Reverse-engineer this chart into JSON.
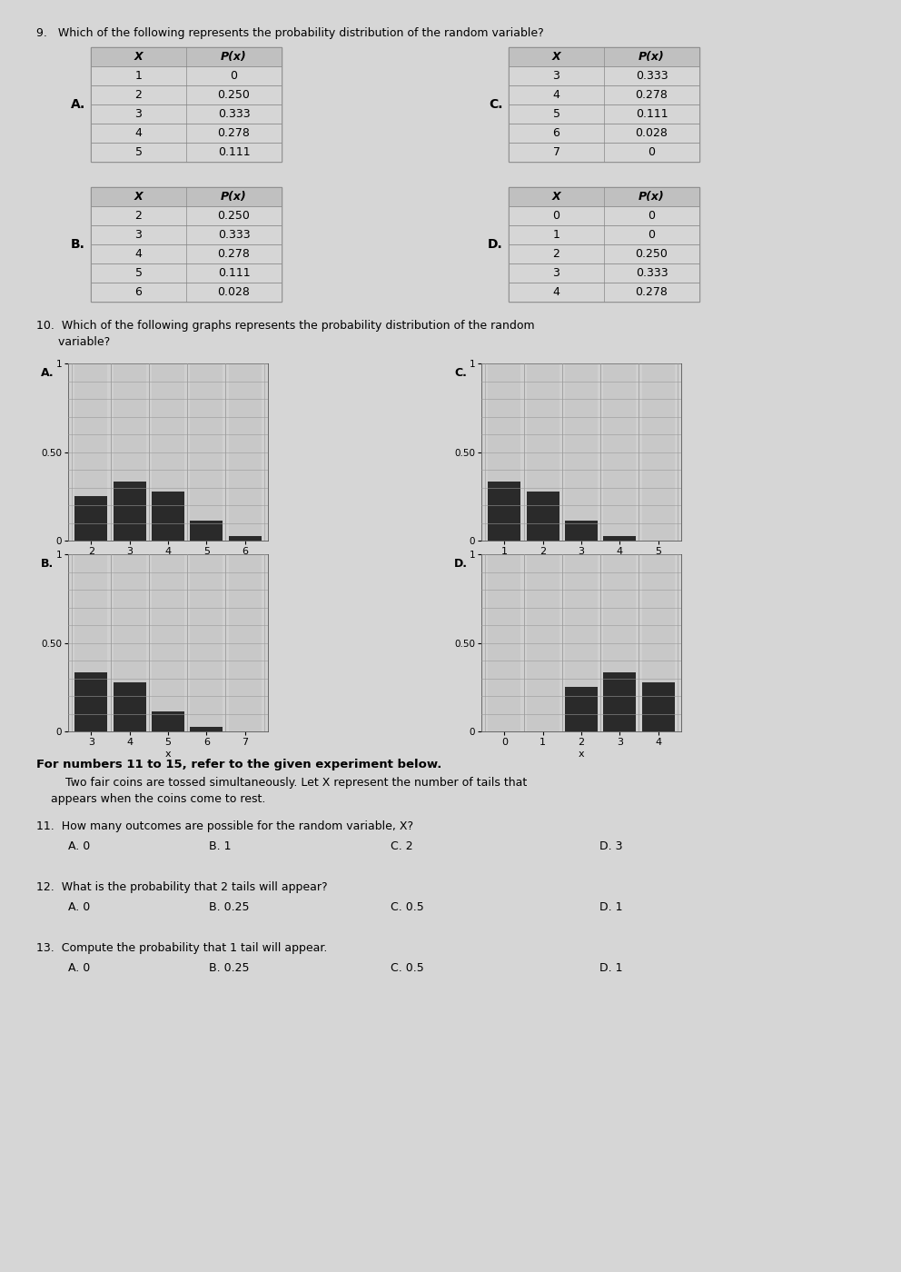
{
  "bg_color": "#d6d6d6",
  "q9_text": "9.   Which of the following represents the probability distribution of the random variable?",
  "table_A": {
    "label": "A.",
    "headers": [
      "X",
      "P(x)"
    ],
    "rows": [
      [
        "1",
        "0"
      ],
      [
        "2",
        "0.250"
      ],
      [
        "3",
        "0.333"
      ],
      [
        "4",
        "0.278"
      ],
      [
        "5",
        "0.111"
      ]
    ]
  },
  "table_C": {
    "label": "C.",
    "headers": [
      "X",
      "P(x)"
    ],
    "rows": [
      [
        "3",
        "0.333"
      ],
      [
        "4",
        "0.278"
      ],
      [
        "5",
        "0.111"
      ],
      [
        "6",
        "0.028"
      ],
      [
        "7",
        "0"
      ]
    ]
  },
  "table_B": {
    "label": "B.",
    "headers": [
      "X",
      "P(x)"
    ],
    "rows": [
      [
        "2",
        "0.250"
      ],
      [
        "3",
        "0.333"
      ],
      [
        "4",
        "0.278"
      ],
      [
        "5",
        "0.111"
      ],
      [
        "6",
        "0.028"
      ]
    ]
  },
  "table_D": {
    "label": "D.",
    "headers": [
      "X",
      "P(x)"
    ],
    "rows": [
      [
        "0",
        "0"
      ],
      [
        "1",
        "0"
      ],
      [
        "2",
        "0.250"
      ],
      [
        "3",
        "0.333"
      ],
      [
        "4",
        "0.278"
      ]
    ]
  },
  "q10_line1": "10.  Which of the following graphs represents the probability distribution of the random",
  "q10_line2": "      variable?",
  "graph_A": {
    "label": "A.",
    "x": [
      2,
      3,
      4,
      5,
      6
    ],
    "y": [
      0.25,
      0.333,
      0.278,
      0.111,
      0.028
    ]
  },
  "graph_C": {
    "label": "C.",
    "x": [
      1,
      2,
      3,
      4,
      5
    ],
    "y": [
      0.333,
      0.278,
      0.111,
      0.028,
      0.0
    ]
  },
  "graph_B": {
    "label": "B.",
    "x": [
      3,
      4,
      5,
      6,
      7
    ],
    "y": [
      0.333,
      0.278,
      0.111,
      0.028,
      0.0
    ]
  },
  "graph_D": {
    "label": "D.",
    "x": [
      0,
      1,
      2,
      3,
      4
    ],
    "y": [
      0.0,
      0.0,
      0.25,
      0.333,
      0.278
    ]
  },
  "section_bold": "For numbers 11 to 15, refer to the given experiment below.",
  "section_body1": "        Two fair coins are tossed simultaneously. Let X represent the number of tails that",
  "section_body2": "    appears when the coins come to rest.",
  "q11_text": "11.  How many outcomes are possible for the random variable, X?",
  "q11_choices": [
    "A. 0",
    "B. 1",
    "C. 2",
    "D. 3"
  ],
  "q12_text": "12.  What is the probability that 2 tails will appear?",
  "q12_choices": [
    "A. 0",
    "B. 0.25",
    "C. 0.5",
    "D. 1"
  ],
  "q13_text": "13.  Compute the probability that 1 tail will appear.",
  "q13_choices": [
    "A. 0",
    "B. 0.25",
    "C. 0.5",
    "D. 1"
  ],
  "dark_bar": "#2d2d2d",
  "light_bar": "#c5c5c5",
  "table_bg": "#d6d6d6",
  "table_header_bg": "#c0c0c0",
  "table_border": "#888888"
}
